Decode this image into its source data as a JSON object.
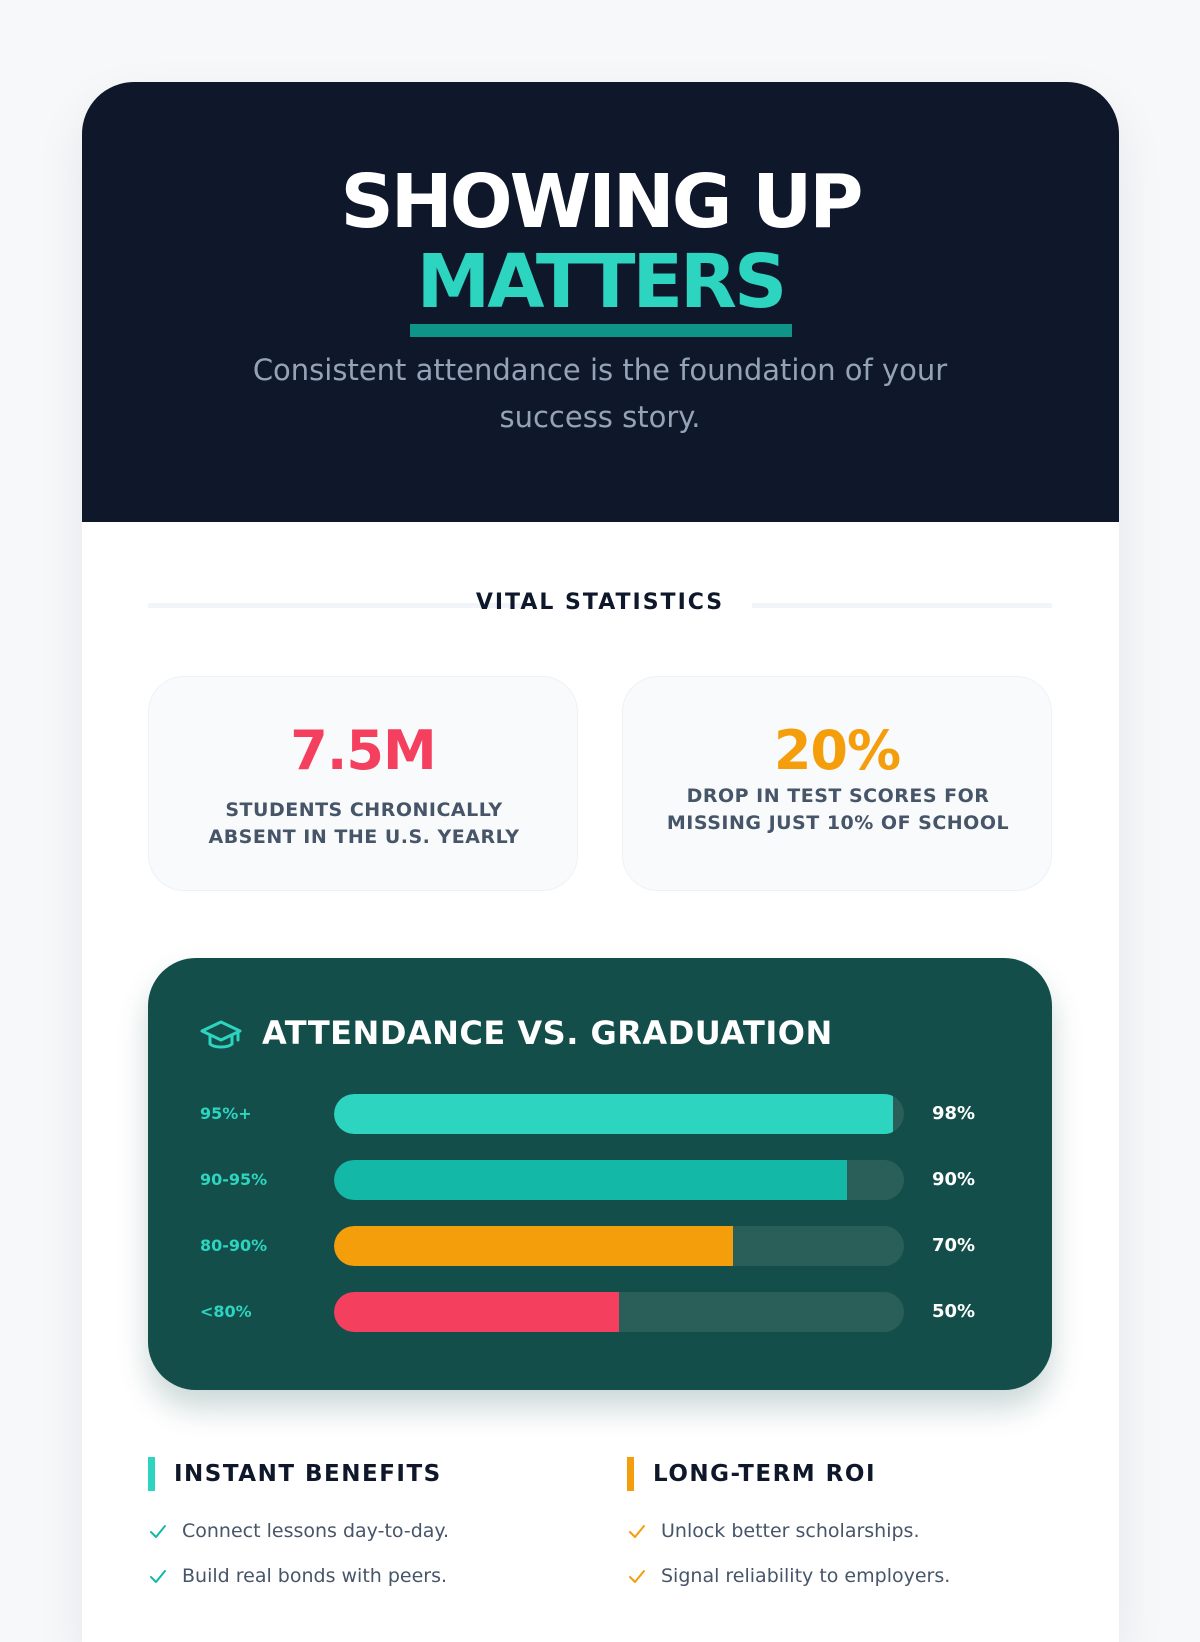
{
  "hero": {
    "title_line1": "SHOWING UP",
    "title_line2": "MATTERS",
    "subtitle": "Consistent attendance is the foundation of your success story."
  },
  "stats_section": {
    "title": "VITAL STATISTICS",
    "cards": [
      {
        "value": "7.5M",
        "label": "STUDENTS CHRONICALLY ABSENT IN THE U.S. YEARLY",
        "color": "#f43f5e"
      },
      {
        "value": "20%",
        "label": "DROP IN TEST SCORES FOR MISSING JUST 10% OF SCHOOL",
        "color": "#f59e0b"
      }
    ]
  },
  "chart_data": {
    "type": "bar",
    "title": "ATTENDANCE VS. GRADUATION",
    "icon": "graduation-cap-icon",
    "orientation": "horizontal",
    "categories": [
      "95%+",
      "90-95%",
      "80-90%",
      "<80%"
    ],
    "values": [
      98,
      90,
      70,
      50
    ],
    "value_labels": [
      "98%",
      "90%",
      "70%",
      "50%"
    ],
    "colors": [
      "#2dd4bf",
      "#14b8a6",
      "#f59e0b",
      "#f43f5e"
    ],
    "xlim": [
      0,
      100
    ]
  },
  "benefits": [
    {
      "heading": "INSTANT BENEFITS",
      "accent": "#2dd4bf",
      "check_color": "#14b8a6",
      "items": [
        "Connect lessons day-to-day.",
        "Build real bonds with peers."
      ]
    },
    {
      "heading": "LONG-TERM ROI",
      "accent": "#f59e0b",
      "check_color": "#f59e0b",
      "items": [
        "Unlock better scholarships.",
        "Signal reliability to employers."
      ]
    }
  ]
}
